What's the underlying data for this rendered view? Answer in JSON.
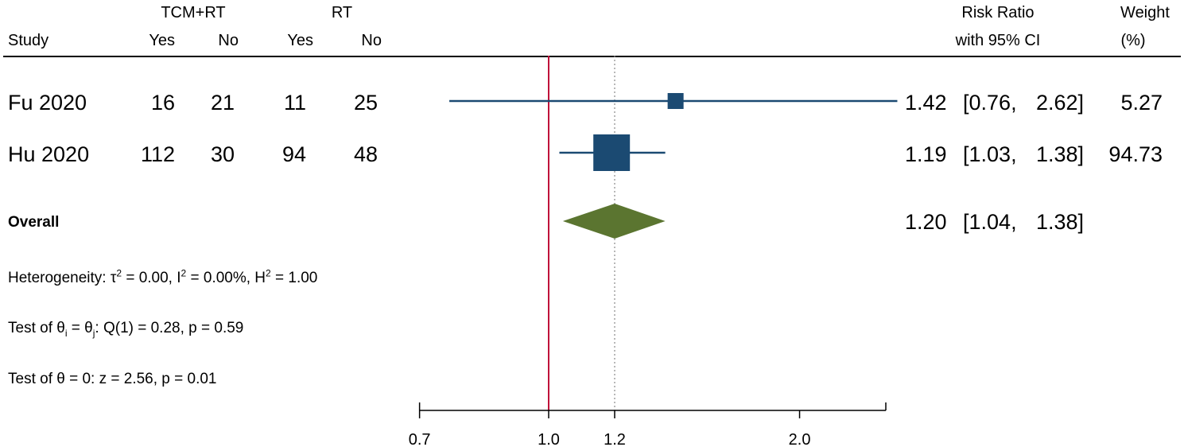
{
  "header": {
    "group1": "TCM+RT",
    "group2": "RT",
    "study": "Study",
    "yes1": "Yes",
    "no1": "No",
    "yes2": "Yes",
    "no2": "No",
    "rr_line1": "Risk Ratio",
    "rr_line2": "with 95% CI",
    "weight_line1": "Weight",
    "weight_line2": "(%)"
  },
  "studies": [
    {
      "name": "Fu 2020",
      "yes1": "16",
      "no1": "21",
      "yes2": "11",
      "no2": "25",
      "rr": "1.42",
      "ci_low": "0.76,",
      "ci_high": "2.62]",
      "weight": "5.27"
    },
    {
      "name": "Hu 2020",
      "yes1": "112",
      "no1": "30",
      "yes2": "94",
      "no2": "48",
      "rr": "1.19",
      "ci_low": "1.03,",
      "ci_high": "1.38]",
      "weight": "94.73"
    }
  ],
  "overall": {
    "label": "Overall",
    "rr": "1.20",
    "ci_low": "1.04,",
    "ci_high": "1.38]"
  },
  "stats": {
    "heterogeneity": {
      "prefix": "Heterogeneity: τ",
      "s1": "2",
      "m1": " = 0.00, I",
      "s2": "2",
      "m2": " = 0.00%, H",
      "s3": "2",
      "m3": " = 1.00"
    },
    "test_homog": {
      "prefix": "Test of θ",
      "sub1": "i",
      "mid": " = θ",
      "sub2": "j",
      "rest": ": Q(1) = 0.28, p = 0.59"
    },
    "test_effect": "Test of θ = 0: z = 2.56, p = 0.01"
  },
  "colors": {
    "study_marker": "#1b4a72",
    "overall_diamond": "#5b7530",
    "null_line": "#c0103a",
    "axis": "#000000",
    "overall_line": "#888888"
  },
  "chart_data": {
    "type": "forest",
    "xscale": "log",
    "xlim": [
      0.7,
      2.62
    ],
    "ticks": [
      0.7,
      1.0,
      1.2,
      2.0
    ],
    "tick_labels": [
      "0.7",
      "1.0",
      "1.2",
      "2.0"
    ],
    "null_value": 1.0,
    "overall_value": 1.2,
    "studies": [
      {
        "name": "Fu 2020",
        "rr": 1.42,
        "lo": 0.76,
        "hi": 2.62,
        "weight": 5.27
      },
      {
        "name": "Hu 2020",
        "rr": 1.19,
        "lo": 1.03,
        "hi": 1.38,
        "weight": 94.73
      }
    ],
    "overall": {
      "rr": 1.2,
      "lo": 1.04,
      "hi": 1.38
    }
  }
}
